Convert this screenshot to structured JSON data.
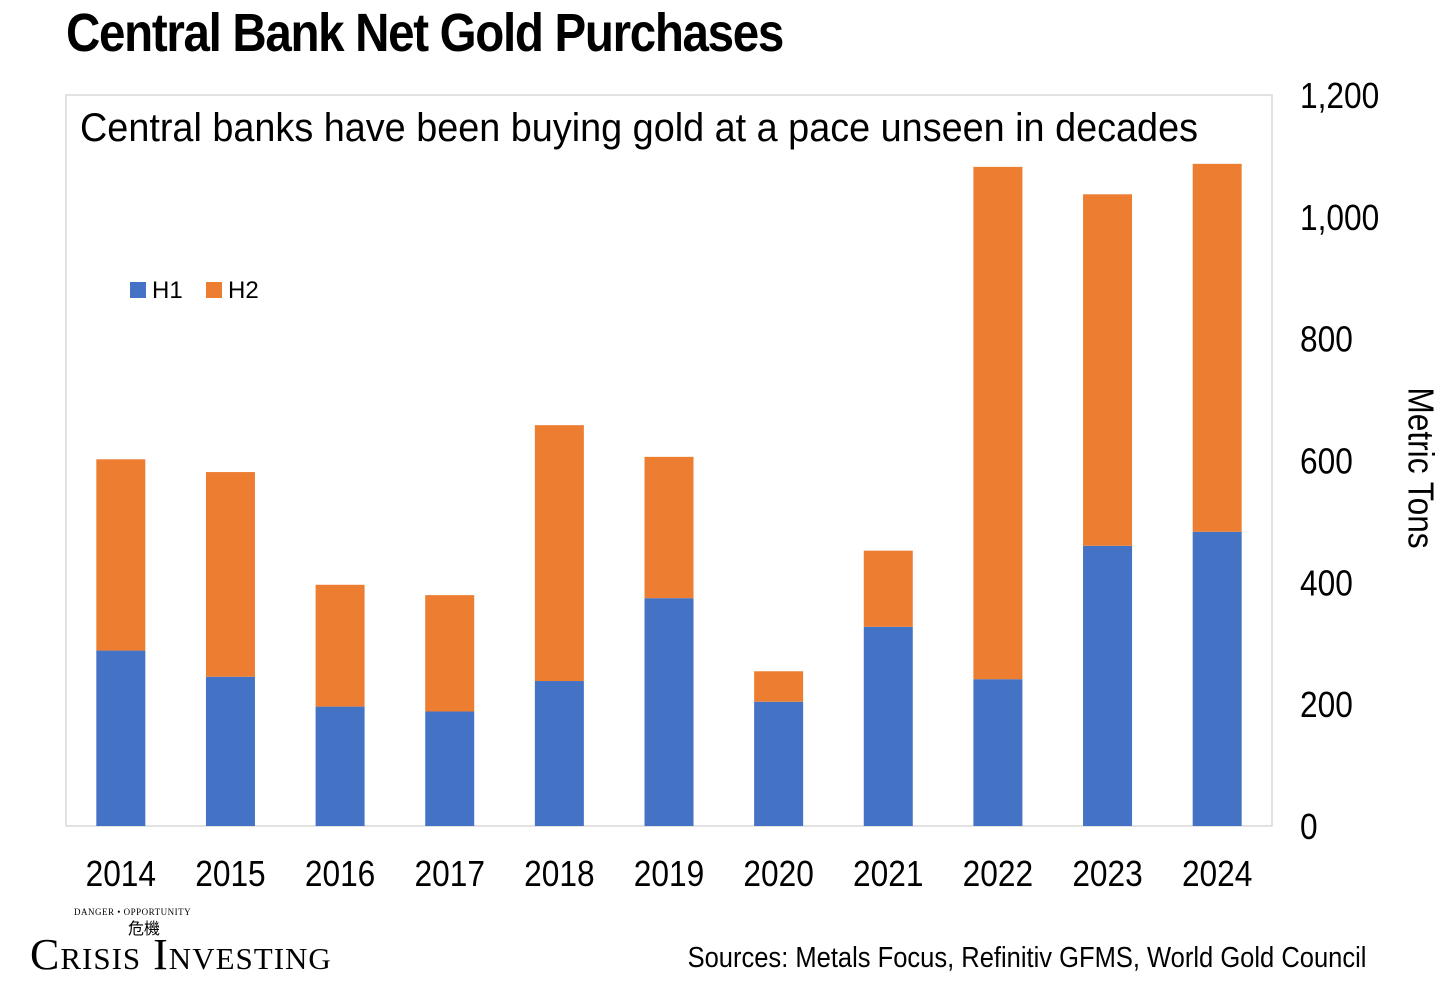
{
  "colors": {
    "h1": "#4472C4",
    "h2": "#ED7D31",
    "frame": "#D9D9D9"
  },
  "logo": {
    "text": "Crisis Investing",
    "tagline": "DANGER • OPPORTUNITY",
    "glyph": "危機"
  },
  "sources": "Sources: Metals Focus, Refinitiv GFMS, World Gold Council",
  "chart_data": {
    "type": "bar",
    "stacked": true,
    "title": "Central Bank Net Gold Purchases",
    "subtitle": "Central banks have been buying gold at a pace unseen in decades",
    "xlabel": "",
    "ylabel": "Metric Tons",
    "ylim": [
      0,
      1200
    ],
    "yticks": [
      0,
      200,
      400,
      600,
      800,
      1000,
      1200
    ],
    "ytick_labels": [
      "0",
      "200",
      "400",
      "600",
      "800",
      "1,000",
      "1,200"
    ],
    "y_axis_side": "right",
    "grid": false,
    "legend_position": "upper-left",
    "categories": [
      "2014",
      "2015",
      "2016",
      "2017",
      "2018",
      "2019",
      "2020",
      "2021",
      "2022",
      "2023",
      "2024"
    ],
    "series": [
      {
        "name": "H1",
        "values": [
          288,
          245,
          196,
          188,
          238,
          374,
          204,
          327,
          241,
          460,
          483
        ]
      },
      {
        "name": "H2",
        "values": [
          314,
          336,
          200,
          191,
          420,
          232,
          50,
          125,
          841,
          577,
          604
        ]
      }
    ]
  }
}
